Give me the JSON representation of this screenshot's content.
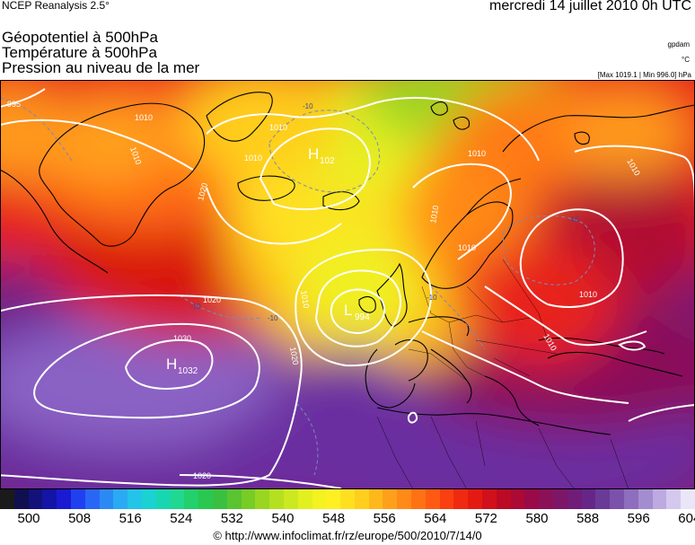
{
  "header": {
    "source": "NCEP Reanalysis 2.5°",
    "date": "mercredi 14 juillet 2010 0h UTC"
  },
  "titles": {
    "geopotential": "Géopotentiel à 500hPa",
    "temperature": "Température à 500hPa",
    "pressure": "Pression au niveau de la mer"
  },
  "units": {
    "geopotential": "gpdam",
    "temperature": "°C",
    "pressure": "[Max 1019.1 | Min 996.0] hPa"
  },
  "colorbar": {
    "tick_labels": [
      "500",
      "508",
      "516",
      "524",
      "532",
      "540",
      "548",
      "556",
      "564",
      "572",
      "580",
      "588",
      "596",
      "604"
    ],
    "colors": [
      "#1a1a1a",
      "#101050",
      "#12127a",
      "#1414a6",
      "#1a1ad2",
      "#2040f0",
      "#2a66f5",
      "#2a8af5",
      "#2aaaf2",
      "#22c4e8",
      "#1ad2d2",
      "#18d6b0",
      "#20d890",
      "#22d06c",
      "#2ac850",
      "#3ac040",
      "#5ac430",
      "#78cc26",
      "#98d622",
      "#b4e020",
      "#cce820",
      "#e2f020",
      "#f4f220",
      "#fff024",
      "#ffe020",
      "#ffce1e",
      "#ffb81c",
      "#ffa01a",
      "#ff8a18",
      "#ff7214",
      "#ff5a12",
      "#fa4010",
      "#f02a10",
      "#e41a12",
      "#d0101a",
      "#bc0a24",
      "#aa0a34",
      "#9a0a48",
      "#8c1058",
      "#7e1668",
      "#701c78",
      "#662688",
      "#6a3a98",
      "#7a52aa",
      "#8e6ebe",
      "#a48cd0",
      "#bcaae0",
      "#d4c8ee",
      "#eae6f8"
    ]
  },
  "map_labels": {
    "highs": [
      {
        "letter": "H",
        "value": "1032"
      },
      {
        "letter": "H",
        "value": "102"
      }
    ],
    "lows": [
      {
        "letter": "L",
        "value": "994"
      }
    ],
    "isobars": [
      "995",
      "1010",
      "1010",
      "1020",
      "1010",
      "1010",
      "1010",
      "1010",
      "1010",
      "1020",
      "1030",
      "1020",
      "1010",
      "1010",
      "1020",
      "1010",
      "1010"
    ],
    "isotherms": [
      "-10",
      "-10",
      "-10",
      "-10",
      "-10"
    ]
  },
  "footer": {
    "url": "© http://www.infoclimat.fr/rz/europe/500/2010/7/14/0"
  }
}
